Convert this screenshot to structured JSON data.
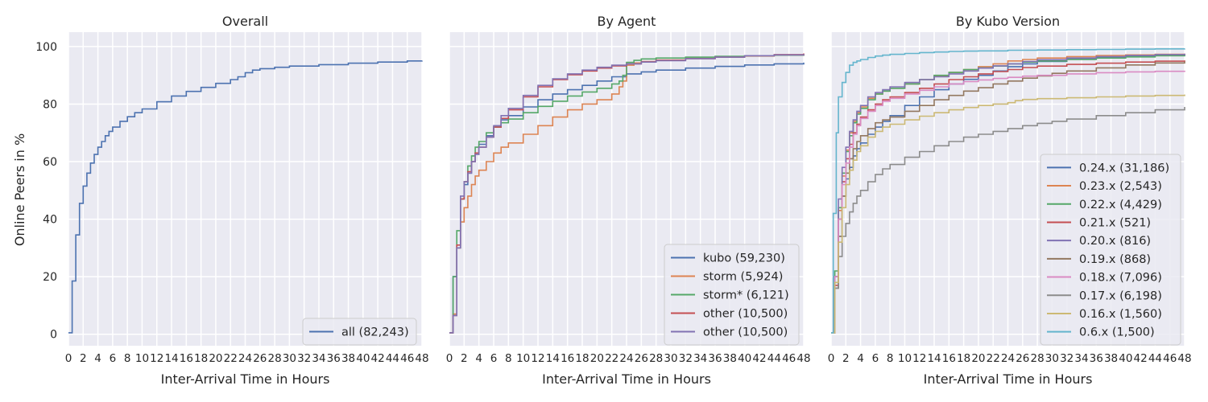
{
  "figure": {
    "ylabel": "Online Peers in %"
  },
  "chart_data": [
    {
      "type": "line",
      "title": "Overall",
      "xlabel": "Inter-Arrival Time in Hours",
      "ylabel": "Online Peers in %",
      "xlim": [
        0,
        48
      ],
      "ylim": [
        -4,
        105
      ],
      "xticks": [
        0,
        2,
        4,
        6,
        8,
        10,
        12,
        14,
        16,
        18,
        20,
        22,
        24,
        26,
        28,
        30,
        32,
        34,
        36,
        38,
        40,
        42,
        44,
        46,
        48
      ],
      "yticks": [
        0,
        20,
        40,
        60,
        80,
        100
      ],
      "grid": true,
      "legend": "bottom-right",
      "series": [
        {
          "name": "all (82,243)",
          "color": "#4c72b0",
          "x": [
            0,
            0.5,
            1,
            1.5,
            2,
            2.5,
            3,
            3.5,
            4,
            4.5,
            5,
            5.5,
            6,
            7,
            8,
            9,
            10,
            12,
            14,
            16,
            18,
            20,
            22,
            23,
            24,
            25,
            26,
            28,
            30,
            34,
            38,
            42,
            46,
            48
          ],
          "y": [
            0.5,
            18.5,
            34.5,
            45.5,
            51.5,
            56,
            59.5,
            62.5,
            65,
            67,
            69,
            70.5,
            72,
            74,
            75.6,
            77,
            78.3,
            80.8,
            82.8,
            84.4,
            85.8,
            87.2,
            88.5,
            89.5,
            90.9,
            91.8,
            92.3,
            92.8,
            93.2,
            93.7,
            94.2,
            94.6,
            95,
            95.1
          ]
        }
      ]
    },
    {
      "type": "line",
      "title": "By Agent",
      "xlabel": "Inter-Arrival Time in Hours",
      "ylabel": "",
      "xlim": [
        0,
        48
      ],
      "ylim": [
        -4,
        105
      ],
      "xticks": [
        0,
        2,
        4,
        6,
        8,
        10,
        12,
        14,
        16,
        18,
        20,
        22,
        24,
        26,
        28,
        30,
        32,
        34,
        36,
        38,
        40,
        42,
        44,
        46,
        48
      ],
      "yticks": [
        0,
        20,
        40,
        60,
        80,
        100
      ],
      "grid": true,
      "legend": "bottom-right",
      "series": [
        {
          "name": "kubo (59,230)",
          "color": "#4c72b0",
          "x": [
            0,
            0.5,
            1,
            1.5,
            2,
            2.5,
            3,
            3.5,
            4,
            5,
            6,
            7,
            8,
            10,
            12,
            14,
            16,
            18,
            20,
            22,
            24,
            26,
            28,
            32,
            36,
            40,
            44,
            48
          ],
          "y": [
            0.5,
            20,
            30,
            47,
            52,
            56,
            60,
            63,
            66,
            69,
            72,
            74.5,
            76,
            79,
            81.5,
            83.5,
            85,
            86.5,
            88,
            89.5,
            90.5,
            91.2,
            91.8,
            92.5,
            93.1,
            93.6,
            94,
            94.4
          ]
        },
        {
          "name": "storm (5,924)",
          "color": "#dd8452",
          "x": [
            0,
            0.5,
            1,
            1.5,
            2,
            2.5,
            3,
            3.5,
            4,
            5,
            6,
            7,
            8,
            10,
            12,
            14,
            16,
            18,
            20,
            22,
            23,
            23.5,
            24,
            25,
            26,
            28,
            32,
            36,
            40,
            44,
            48
          ],
          "y": [
            0.5,
            7,
            30,
            39,
            44,
            48,
            52,
            55,
            57,
            60,
            63,
            65,
            66.5,
            69.5,
            72.5,
            75.5,
            78,
            80,
            81.5,
            83.5,
            86,
            88,
            93.5,
            94.3,
            94.8,
            95.3,
            95.9,
            96.3,
            96.7,
            97,
            97.2
          ]
        },
        {
          "name": "storm* (6,121)",
          "color": "#55a868",
          "x": [
            0,
            0.5,
            1,
            1.5,
            2,
            2.5,
            3,
            3.5,
            4,
            5,
            6,
            7,
            8,
            10,
            12,
            14,
            16,
            18,
            20,
            22,
            23,
            23.5,
            24,
            25,
            26,
            28,
            32,
            36,
            40,
            44,
            48
          ],
          "y": [
            0.5,
            20,
            36,
            47,
            53,
            58.5,
            62,
            65,
            67,
            70,
            72,
            73.5,
            74.8,
            77,
            79.2,
            81,
            82.8,
            84.2,
            85.5,
            87,
            88,
            90,
            94.5,
            95.2,
            95.7,
            96,
            96.3,
            96.6,
            96.8,
            97,
            97.3
          ]
        },
        {
          "name": "other (10,500)",
          "color": "#c44e52",
          "x": [
            0,
            0.5,
            1,
            1.5,
            2,
            2.5,
            3,
            3.5,
            4,
            5,
            6,
            7,
            8,
            10,
            12,
            14,
            16,
            18,
            20,
            22,
            24,
            26,
            28,
            32,
            36,
            40,
            44,
            48
          ],
          "y": [
            0.5,
            6.5,
            31,
            47,
            53,
            56.5,
            60,
            63,
            65,
            68.5,
            72,
            75,
            78,
            82.5,
            86,
            88.5,
            90.2,
            91.5,
            92.5,
            93.3,
            94,
            94.7,
            95.2,
            95.8,
            96.3,
            96.8,
            97.2,
            97.6
          ]
        },
        {
          "name": "other (10,500)",
          "color": "#8172b3",
          "x": [
            0,
            0.5,
            1,
            1.5,
            2,
            2.5,
            3,
            3.5,
            4,
            5,
            6,
            7,
            8,
            10,
            12,
            14,
            16,
            18,
            20,
            22,
            24,
            26,
            28,
            32,
            36,
            40,
            44,
            48
          ],
          "y": [
            0.5,
            6.5,
            30,
            48,
            53,
            56,
            60,
            62.5,
            65,
            68.5,
            72.5,
            76,
            78.5,
            83,
            86.5,
            88.8,
            90.5,
            91.8,
            92.8,
            93.5,
            94,
            94.6,
            95.1,
            95.8,
            96.3,
            96.8,
            97.1,
            97.4
          ]
        }
      ]
    },
    {
      "type": "line",
      "title": "By Kubo Version",
      "xlabel": "Inter-Arrival Time in Hours",
      "ylabel": "",
      "xlim": [
        0,
        48
      ],
      "ylim": [
        -4,
        105
      ],
      "xticks": [
        0,
        2,
        4,
        6,
        8,
        10,
        12,
        14,
        16,
        18,
        20,
        22,
        24,
        26,
        28,
        30,
        32,
        34,
        36,
        38,
        40,
        42,
        44,
        46,
        48
      ],
      "yticks": [
        0,
        20,
        40,
        60,
        80,
        100
      ],
      "grid": true,
      "legend": "bottom-right",
      "series": [
        {
          "name": "0.24.x (31,186)",
          "color": "#4c72b0",
          "x": [
            0,
            0.5,
            1,
            1.5,
            2,
            2.5,
            3,
            3.5,
            4,
            5,
            6,
            7,
            8,
            10,
            12,
            14,
            16,
            18,
            20,
            22,
            24,
            26,
            28,
            32,
            36,
            40,
            44,
            48
          ],
          "y": [
            0.5,
            18,
            34,
            48,
            54,
            58,
            62,
            64.5,
            66.5,
            69.5,
            72,
            74,
            76,
            79.5,
            82.5,
            85,
            87,
            88.6,
            90,
            91.5,
            93,
            94,
            94.8,
            95.6,
            96.2,
            96.7,
            97,
            97.3
          ]
        },
        {
          "name": "0.23.x (2,543)",
          "color": "#dd8452",
          "x": [
            0,
            0.5,
            1,
            1.5,
            2,
            2.5,
            3,
            3.5,
            4,
            5,
            6,
            7,
            8,
            10,
            12,
            14,
            16,
            18,
            20,
            22,
            24,
            26,
            28,
            32,
            36,
            40,
            44,
            48
          ],
          "y": [
            0.5,
            20,
            43,
            55,
            64,
            70,
            74,
            77,
            79,
            82,
            83.5,
            84.5,
            85.5,
            87,
            88.5,
            89.8,
            91,
            92,
            93,
            94,
            95,
            95.5,
            96,
            96.5,
            96.9,
            97.1,
            97.3,
            97.5
          ]
        },
        {
          "name": "0.22.x (4,429)",
          "color": "#55a868",
          "x": [
            0,
            0.5,
            1,
            1.5,
            2,
            2.5,
            3,
            3.5,
            4,
            5,
            6,
            7,
            8,
            10,
            12,
            14,
            16,
            18,
            20,
            22,
            24,
            26,
            28,
            32,
            36,
            40,
            44,
            48
          ],
          "y": [
            0.5,
            22,
            44,
            56,
            63.5,
            69,
            73.5,
            76.5,
            78.5,
            81.5,
            83.5,
            84.5,
            85.5,
            87,
            88.5,
            90,
            91,
            92,
            92.6,
            93.2,
            94,
            94.6,
            95,
            95.5,
            96,
            96.4,
            96.8,
            97.1
          ]
        },
        {
          "name": "0.21.x (521)",
          "color": "#c44e52",
          "x": [
            0,
            0.5,
            1,
            1.5,
            2,
            2.5,
            3,
            3.5,
            4,
            5,
            6,
            7,
            8,
            10,
            12,
            14,
            16,
            18,
            20,
            22,
            24,
            26,
            28,
            32,
            36,
            40,
            44,
            48
          ],
          "y": [
            0.5,
            17,
            40,
            53,
            61,
            66,
            70,
            73,
            75.5,
            78,
            80,
            81.5,
            82.5,
            84,
            85.5,
            87,
            88.5,
            89.5,
            90.5,
            91.3,
            92,
            92.7,
            93.2,
            93.8,
            94.2,
            94.6,
            94.9,
            95.2
          ]
        },
        {
          "name": "0.20.x (816)",
          "color": "#8172b3",
          "x": [
            0,
            0.5,
            1,
            1.5,
            2,
            2.5,
            3,
            3.5,
            4,
            5,
            6,
            7,
            8,
            10,
            12,
            14,
            16,
            18,
            20,
            22,
            24,
            26,
            28,
            32,
            36,
            40,
            44,
            48
          ],
          "y": [
            0.5,
            20,
            47,
            58,
            65,
            70.5,
            74.5,
            77.5,
            79.5,
            82.5,
            84,
            85,
            86,
            87.5,
            88.5,
            89.5,
            90.5,
            91.5,
            92.5,
            93.3,
            94,
            94.8,
            95.4,
            96,
            96.5,
            96.9,
            97.2,
            97.5
          ]
        },
        {
          "name": "0.19.x (868)",
          "color": "#937860",
          "x": [
            0,
            0.5,
            1,
            1.5,
            2,
            2.5,
            3,
            3.5,
            4,
            5,
            6,
            7,
            8,
            10,
            12,
            14,
            16,
            18,
            20,
            22,
            24,
            26,
            28,
            30,
            32,
            36,
            40,
            44,
            48
          ],
          "y": [
            0.5,
            16,
            34,
            48,
            56,
            61,
            64.5,
            67,
            69,
            71.5,
            73.5,
            74.5,
            75.5,
            77.5,
            79.5,
            81.5,
            83,
            84.5,
            85.7,
            87,
            88,
            89,
            89.8,
            90.7,
            91.5,
            92.6,
            93.6,
            94.3,
            94.8
          ]
        },
        {
          "name": "0.18.x (7,096)",
          "color": "#da8bc3",
          "x": [
            0,
            0.5,
            1,
            1.5,
            2,
            2.5,
            3,
            3.5,
            4,
            5,
            6,
            7,
            8,
            10,
            12,
            14,
            16,
            18,
            20,
            22,
            24,
            26,
            28,
            32,
            36,
            40,
            44,
            48
          ],
          "y": [
            0.5,
            20,
            40,
            52,
            59.5,
            65,
            69.5,
            72.5,
            75,
            77.5,
            79.5,
            81,
            82,
            83.5,
            84.8,
            86,
            87,
            87.8,
            88.4,
            88.9,
            89.3,
            89.7,
            90,
            90.5,
            90.9,
            91.2,
            91.4,
            91.6
          ]
        },
        {
          "name": "0.17.x (6,198)",
          "color": "#8c8c8c",
          "x": [
            0,
            0.5,
            1,
            1.5,
            2,
            2.5,
            3,
            3.5,
            4,
            5,
            6,
            7,
            8,
            10,
            12,
            14,
            16,
            18,
            20,
            22,
            24,
            26,
            28,
            30,
            32,
            36,
            40,
            44,
            48
          ],
          "y": [
            0.5,
            16,
            27,
            34,
            38.5,
            42.5,
            45.5,
            48,
            50,
            53,
            55.5,
            57.5,
            59,
            61.5,
            63.5,
            65.5,
            67,
            68.5,
            69.5,
            70.5,
            71.5,
            72.5,
            73.3,
            74,
            74.8,
            76,
            77,
            78,
            79
          ]
        },
        {
          "name": "0.16.x (1,560)",
          "color": "#ccb974",
          "x": [
            0,
            0.5,
            1,
            1.5,
            2,
            2.5,
            3,
            3.5,
            4,
            5,
            6,
            7,
            8,
            10,
            12,
            14,
            16,
            18,
            20,
            22,
            24,
            25,
            26,
            28,
            32,
            36,
            40,
            44,
            48
          ],
          "y": [
            0.5,
            18,
            32,
            44,
            52,
            57,
            60.5,
            63.5,
            65.5,
            68.5,
            70.5,
            72,
            73,
            74.5,
            75.8,
            77,
            78,
            78.8,
            79.5,
            80,
            80.5,
            81.2,
            81.6,
            81.9,
            82.2,
            82.5,
            82.8,
            83,
            83.3
          ]
        },
        {
          "name": "0.6.x (1,500)",
          "color": "#64b5cd",
          "x": [
            0,
            0.3,
            0.7,
            1,
            1.5,
            2,
            2.5,
            3,
            3.5,
            4,
            5,
            6,
            7,
            8,
            10,
            12,
            14,
            16,
            18,
            20,
            24,
            28,
            32,
            36,
            40,
            44,
            48
          ],
          "y": [
            0.5,
            42,
            70,
            82.5,
            87.5,
            91,
            93.5,
            94.5,
            95,
            95.5,
            96.2,
            96.7,
            97,
            97.3,
            97.6,
            97.9,
            98.1,
            98.3,
            98.4,
            98.5,
            98.7,
            98.8,
            98.9,
            99,
            99.1,
            99.2,
            99.3
          ]
        }
      ]
    }
  ]
}
